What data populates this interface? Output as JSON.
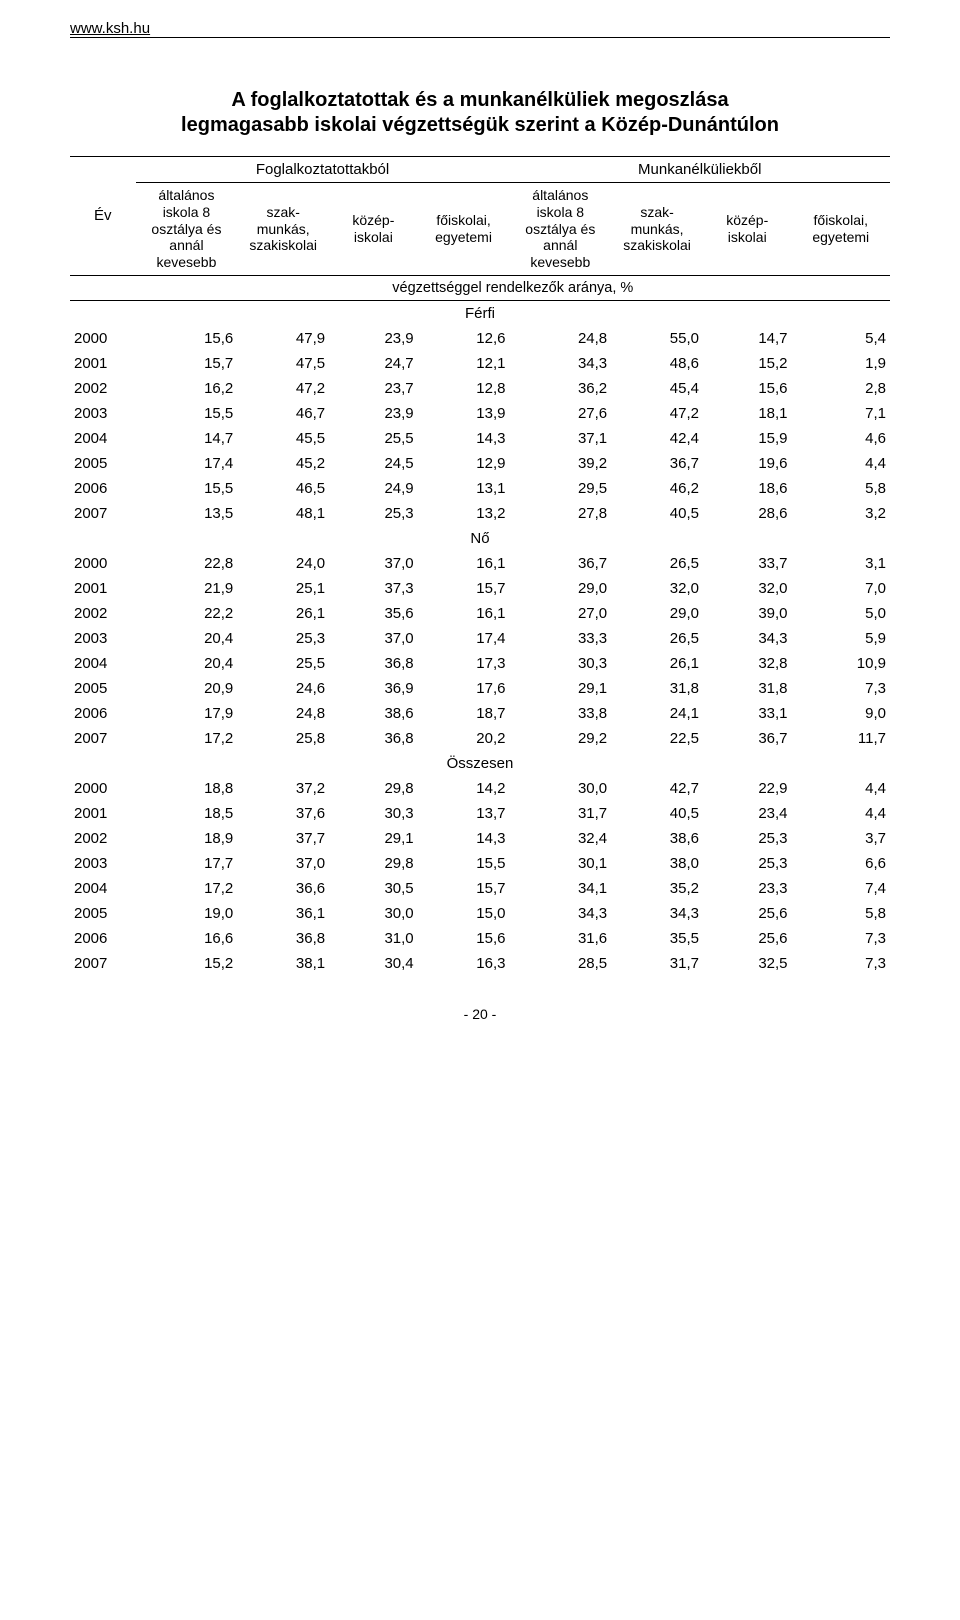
{
  "site_url": "www.ksh.hu",
  "title_line1": "A foglalkoztatottak és a munkanélküliek megoszlása",
  "title_line2": "legmagasabb iskolai végzettségük szerint a Közép-Dunántúlon",
  "header": {
    "year": "Év",
    "group1": "Foglalkoztatottakból",
    "group2": "Munkanélküliekből",
    "col1": "általános iskola 8 osztálya és annál kevesebb",
    "col2": "szak-munkás, szakiskolai",
    "col3": "közép-iskolai",
    "col4": "főiskolai, egyetemi",
    "col5": "általános iskola 8 osztálya és annál kevesebb",
    "col6": "szak-munkás, szakiskolai",
    "col7": "közép-iskolai",
    "col8": "főiskolai, egyetemi",
    "sub": "végzettséggel rendelkezők aránya, %"
  },
  "sections": [
    {
      "label": "Férfi",
      "rows": [
        [
          "2000",
          "15,6",
          "47,9",
          "23,9",
          "12,6",
          "24,8",
          "55,0",
          "14,7",
          "5,4"
        ],
        [
          "2001",
          "15,7",
          "47,5",
          "24,7",
          "12,1",
          "34,3",
          "48,6",
          "15,2",
          "1,9"
        ],
        [
          "2002",
          "16,2",
          "47,2",
          "23,7",
          "12,8",
          "36,2",
          "45,4",
          "15,6",
          "2,8"
        ],
        [
          "2003",
          "15,5",
          "46,7",
          "23,9",
          "13,9",
          "27,6",
          "47,2",
          "18,1",
          "7,1"
        ],
        [
          "2004",
          "14,7",
          "45,5",
          "25,5",
          "14,3",
          "37,1",
          "42,4",
          "15,9",
          "4,6"
        ],
        [
          "2005",
          "17,4",
          "45,2",
          "24,5",
          "12,9",
          "39,2",
          "36,7",
          "19,6",
          "4,4"
        ],
        [
          "2006",
          "15,5",
          "46,5",
          "24,9",
          "13,1",
          "29,5",
          "46,2",
          "18,6",
          "5,8"
        ],
        [
          "2007",
          "13,5",
          "48,1",
          "25,3",
          "13,2",
          "27,8",
          "40,5",
          "28,6",
          "3,2"
        ]
      ]
    },
    {
      "label": "Nő",
      "rows": [
        [
          "2000",
          "22,8",
          "24,0",
          "37,0",
          "16,1",
          "36,7",
          "26,5",
          "33,7",
          "3,1"
        ],
        [
          "2001",
          "21,9",
          "25,1",
          "37,3",
          "15,7",
          "29,0",
          "32,0",
          "32,0",
          "7,0"
        ],
        [
          "2002",
          "22,2",
          "26,1",
          "35,6",
          "16,1",
          "27,0",
          "29,0",
          "39,0",
          "5,0"
        ],
        [
          "2003",
          "20,4",
          "25,3",
          "37,0",
          "17,4",
          "33,3",
          "26,5",
          "34,3",
          "5,9"
        ],
        [
          "2004",
          "20,4",
          "25,5",
          "36,8",
          "17,3",
          "30,3",
          "26,1",
          "32,8",
          "10,9"
        ],
        [
          "2005",
          "20,9",
          "24,6",
          "36,9",
          "17,6",
          "29,1",
          "31,8",
          "31,8",
          "7,3"
        ],
        [
          "2006",
          "17,9",
          "24,8",
          "38,6",
          "18,7",
          "33,8",
          "24,1",
          "33,1",
          "9,0"
        ],
        [
          "2007",
          "17,2",
          "25,8",
          "36,8",
          "20,2",
          "29,2",
          "22,5",
          "36,7",
          "11,7"
        ]
      ]
    },
    {
      "label": "Összesen",
      "rows": [
        [
          "2000",
          "18,8",
          "37,2",
          "29,8",
          "14,2",
          "30,0",
          "42,7",
          "22,9",
          "4,4"
        ],
        [
          "2001",
          "18,5",
          "37,6",
          "30,3",
          "13,7",
          "31,7",
          "40,5",
          "23,4",
          "4,4"
        ],
        [
          "2002",
          "18,9",
          "37,7",
          "29,1",
          "14,3",
          "32,4",
          "38,6",
          "25,3",
          "3,7"
        ],
        [
          "2003",
          "17,7",
          "37,0",
          "29,8",
          "15,5",
          "30,1",
          "38,0",
          "25,3",
          "6,6"
        ],
        [
          "2004",
          "17,2",
          "36,6",
          "30,5",
          "15,7",
          "34,1",
          "35,2",
          "23,3",
          "7,4"
        ],
        [
          "2005",
          "19,0",
          "36,1",
          "30,0",
          "15,0",
          "34,3",
          "34,3",
          "25,6",
          "5,8"
        ],
        [
          "2006",
          "16,6",
          "36,8",
          "31,0",
          "15,6",
          "31,6",
          "35,5",
          "25,6",
          "7,3"
        ],
        [
          "2007",
          "15,2",
          "38,1",
          "30,4",
          "16,3",
          "28,5",
          "31,7",
          "32,5",
          "7,3"
        ]
      ]
    }
  ],
  "page_number": "- 20 -",
  "style": {
    "background_color": "#ffffff",
    "text_color": "#000000",
    "rule_color": "#000000",
    "title_fontsize": 20,
    "body_fontsize": 15,
    "header_fontsize": 14,
    "col_widths_pct": [
      8,
      12.4,
      11.2,
      10.8,
      11.2,
      12.4,
      11.2,
      10.8,
      12
    ]
  }
}
